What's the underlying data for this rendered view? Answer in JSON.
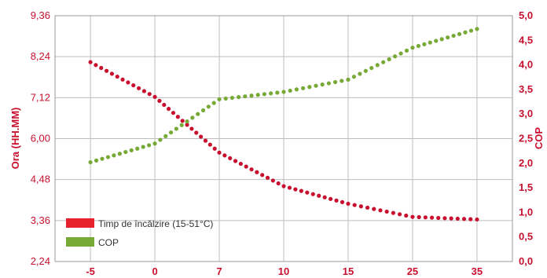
{
  "chart_data": {
    "type": "scatter",
    "x_categories": [
      "-5",
      "0",
      "7",
      "10",
      "15",
      "25",
      "35"
    ],
    "y_left": {
      "label": "Ora (HH.MM)",
      "ticks": [
        "2,24",
        "3,36",
        "4,48",
        "6,00",
        "7,12",
        "8,24",
        "9,36"
      ]
    },
    "y_right": {
      "label": "COP",
      "ticks": [
        "0,0",
        "0,5",
        "1,0",
        "1,5",
        "2,0",
        "2,5",
        "3,0",
        "3,5",
        "4,0",
        "4,5",
        "5,0"
      ],
      "range": [
        0,
        5
      ]
    },
    "grid": true,
    "legend_position": "bottom-left",
    "series": [
      {
        "name": "Timp de încălzire  (15-51°C)",
        "axis": "left",
        "color": "#c8102e",
        "points": [
          {
            "x": "-5",
            "y": 8.09
          },
          {
            "x": "0",
            "y": 7.14
          },
          {
            "x": "7",
            "y": 5.48
          },
          {
            "x": "10",
            "y": 4.3
          },
          {
            "x": "15",
            "y": 3.82
          },
          {
            "x": "25",
            "y": 3.46
          },
          {
            "x": "35",
            "y": 3.39
          }
        ]
      },
      {
        "name": "COP",
        "axis": "right",
        "color": "#76a935",
        "points": [
          {
            "x": "-5",
            "y": 2.02
          },
          {
            "x": "0",
            "y": 2.4
          },
          {
            "x": "7",
            "y": 3.3
          },
          {
            "x": "10",
            "y": 3.45
          },
          {
            "x": "15",
            "y": 3.7
          },
          {
            "x": "25",
            "y": 4.35
          },
          {
            "x": "35",
            "y": 4.73
          }
        ]
      }
    ]
  },
  "legend": {
    "items": [
      {
        "label": "Timp de încălzire  (15-51°C)",
        "color": "#e8212e"
      },
      {
        "label": "COP",
        "color": "#76a935"
      }
    ]
  }
}
